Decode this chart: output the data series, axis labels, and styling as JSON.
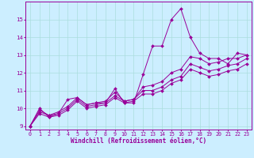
{
  "xlabel": "Windchill (Refroidissement éolien,°C)",
  "bg_color": "#cceeff",
  "line_color": "#990099",
  "xlim": [
    -0.5,
    23.5
  ],
  "ylim": [
    8.8,
    16.0
  ],
  "xticks": [
    0,
    1,
    2,
    3,
    4,
    5,
    6,
    7,
    8,
    9,
    10,
    11,
    12,
    13,
    14,
    15,
    16,
    17,
    18,
    19,
    20,
    21,
    22,
    23
  ],
  "yticks": [
    9,
    10,
    11,
    12,
    13,
    14,
    15
  ],
  "series": [
    [
      9.0,
      10.0,
      9.5,
      9.7,
      10.5,
      10.6,
      10.2,
      10.3,
      10.3,
      11.1,
      10.3,
      10.3,
      11.9,
      13.5,
      13.5,
      15.0,
      15.6,
      14.0,
      13.1,
      12.8,
      12.8,
      12.5,
      13.1,
      13.0
    ],
    [
      9.0,
      9.9,
      9.6,
      9.8,
      10.1,
      10.6,
      10.2,
      10.3,
      10.4,
      10.9,
      10.4,
      10.5,
      11.2,
      11.3,
      11.5,
      12.0,
      12.2,
      12.9,
      12.8,
      12.5,
      12.6,
      12.8,
      12.8,
      13.0
    ],
    [
      9.0,
      9.8,
      9.6,
      9.7,
      10.0,
      10.5,
      10.1,
      10.2,
      10.3,
      10.7,
      10.4,
      10.5,
      11.0,
      11.0,
      11.2,
      11.6,
      11.8,
      12.5,
      12.3,
      12.1,
      12.2,
      12.4,
      12.5,
      12.8
    ],
    [
      9.0,
      9.7,
      9.5,
      9.6,
      9.9,
      10.4,
      10.0,
      10.1,
      10.2,
      10.6,
      10.3,
      10.4,
      10.8,
      10.8,
      11.0,
      11.4,
      11.6,
      12.2,
      12.0,
      11.8,
      11.9,
      12.1,
      12.2,
      12.5
    ]
  ],
  "grid_color": "#aadddd",
  "marker": "D",
  "marker_size": 2.0,
  "linewidth": 0.7,
  "tick_fontsize": 4.8,
  "xlabel_fontsize": 5.5
}
